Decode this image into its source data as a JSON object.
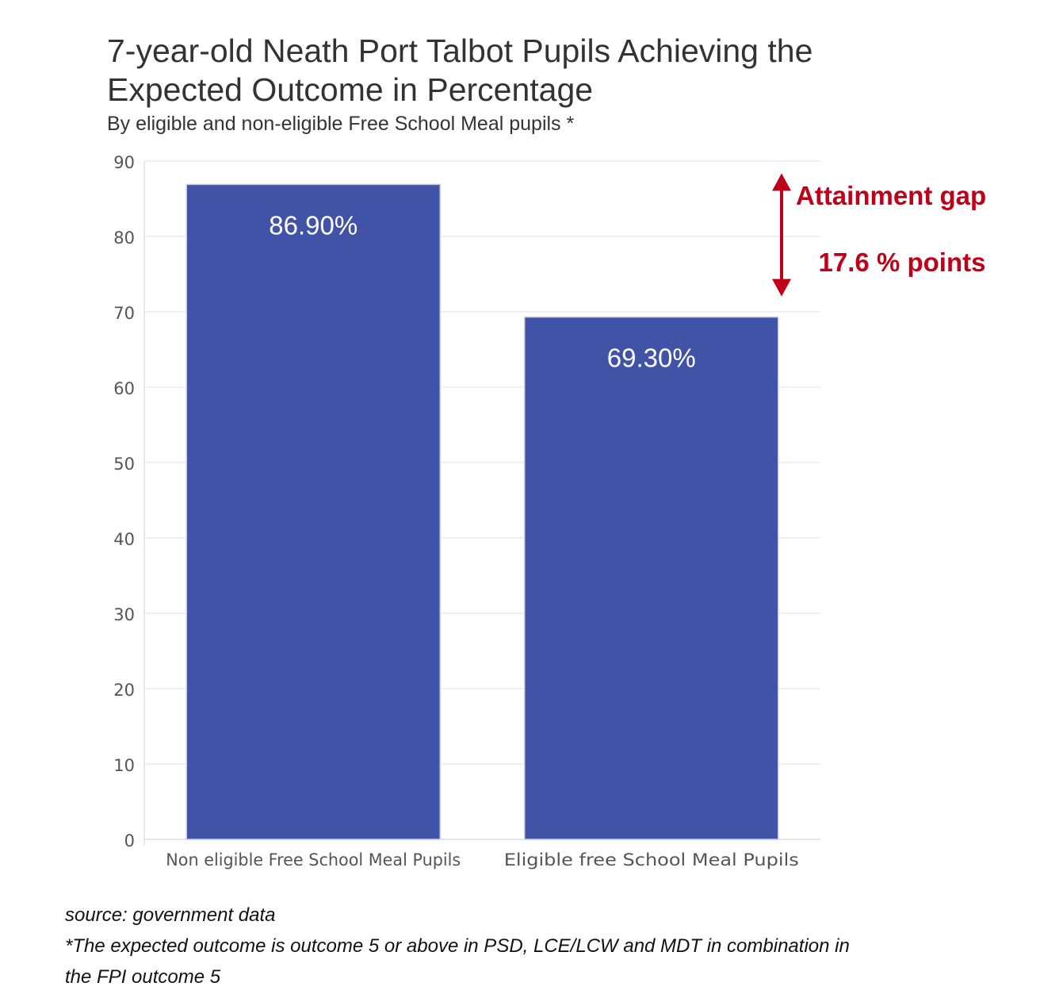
{
  "chart_data": {
    "type": "bar",
    "title": "7-year-old Neath Port Talbot Pupils Achieving the Expected Outcome in Percentage",
    "subtitle": "By eligible and non-eligible Free School Meal pupils *",
    "categories": [
      "Non eligible Free School Meal Pupils",
      "Eligible free School Meal Pupils"
    ],
    "values": [
      86.9,
      69.3
    ],
    "data_labels": [
      "86.90%",
      "69.30%"
    ],
    "ylim": [
      0,
      90
    ],
    "yticks": [
      0,
      10,
      20,
      30,
      40,
      50,
      60,
      70,
      80,
      90
    ],
    "grid": true,
    "bar_color": "#4153a6",
    "annotation": {
      "label": "Attainment gap",
      "value_text": "17.6 % points",
      "from": 69.3,
      "to": 86.9,
      "color": "#c00018"
    }
  },
  "footer": {
    "source": "source: government data",
    "note_line1": "*The expected outcome is outcome 5 or above in PSD, LCE/LCW and MDT in combination in",
    "note_line2": "the FPI outcome 5"
  }
}
